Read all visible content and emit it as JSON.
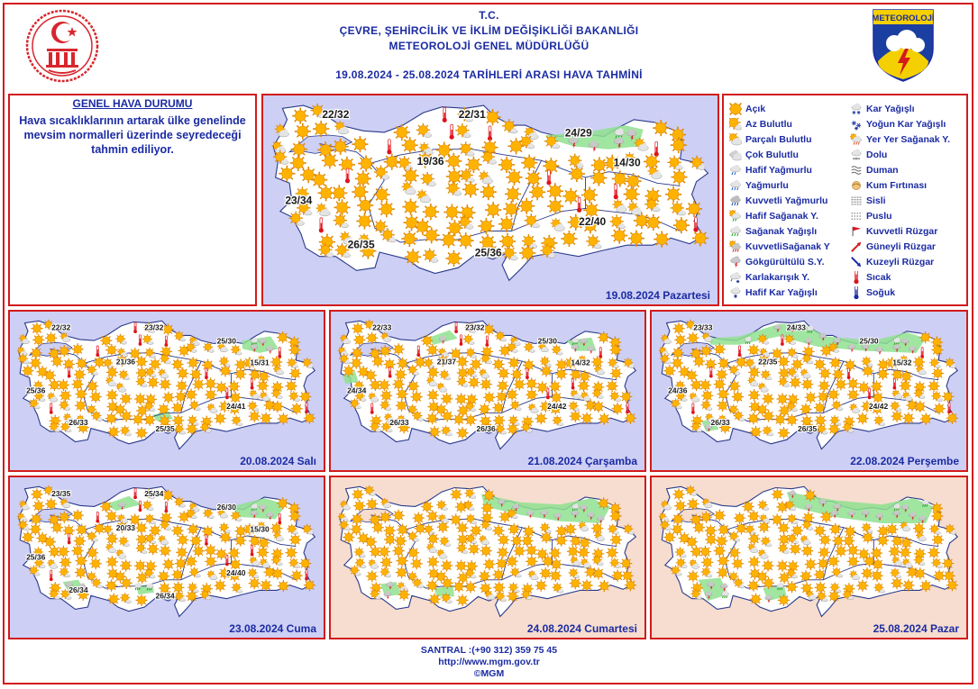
{
  "header": {
    "line1": "T.C.",
    "line2": "ÇEVRE, ŞEHİRCİLİK VE İKLİM DEĞİŞİKLİĞİ BAKANLIĞI",
    "line3": "METEOROLOJİ GENEL MÜDÜRLÜĞÜ",
    "range": "19.08.2024  -  25.08.2024   TARİHLERİ ARASI HAVA TAHMİNİ",
    "logo_text": "METEOROLOJİ"
  },
  "general": {
    "title": "GENEL HAVA DURUMU",
    "text": "Hava sıcaklıklarının artarak ülke genelinde mevsim normalleri üzerinde seyredeceği tahmin ediliyor."
  },
  "colors": {
    "border": "#d21b1b",
    "text": "#1b2ba3",
    "land": "#ffffff",
    "sea_weekday": "#cdcff4",
    "sea_weekend": "#f6ddcf",
    "rain_zone": "#8fe08f",
    "sun": "#ffb300"
  },
  "legend": {
    "col1": [
      {
        "icon": "sun-icon",
        "label": "Açık"
      },
      {
        "icon": "few-clouds-icon",
        "label": "Az Bulutlu"
      },
      {
        "icon": "partly-cloudy-icon",
        "label": "Parçalı Bulutlu"
      },
      {
        "icon": "cloudy-icon",
        "label": "Çok Bulutlu"
      },
      {
        "icon": "light-rain-icon",
        "label": "Hafif Yağmurlu"
      },
      {
        "icon": "rain-icon",
        "label": "Yağmurlu"
      },
      {
        "icon": "heavy-rain-icon",
        "label": "Kuvvetli Yağmurlu"
      },
      {
        "icon": "light-showers-icon",
        "label": "Hafif Sağanak Y."
      },
      {
        "icon": "showers-icon",
        "label": "Sağanak Yağışlı"
      },
      {
        "icon": "heavy-showers-icon",
        "label": "KuvvetliSağanak Y"
      },
      {
        "icon": "thunderstorm-icon",
        "label": "Gökgürültülü S.Y."
      },
      {
        "icon": "sleet-icon",
        "label": "Karlakarışık Y."
      },
      {
        "icon": "light-snow-icon",
        "label": "Hafif Kar Yağışlı"
      }
    ],
    "col2": [
      {
        "icon": "snow-icon",
        "label": "Kar Yağışlı"
      },
      {
        "icon": "heavy-snow-icon",
        "label": "Yoğun Kar Yağışlı"
      },
      {
        "icon": "local-showers-icon",
        "label": "Yer Yer Sağanak Y."
      },
      {
        "icon": "hail-icon",
        "label": "Dolu"
      },
      {
        "icon": "smoke-icon",
        "label": "Duman"
      },
      {
        "icon": "sandstorm-icon",
        "label": "Kum Fırtınası"
      },
      {
        "icon": "fog-icon",
        "label": "Sisli"
      },
      {
        "icon": "haze-icon",
        "label": "Puslu"
      },
      {
        "icon": "strong-wind-icon",
        "label": "Kuvvetli Rüzgar"
      },
      {
        "icon": "south-wind-icon",
        "label": "Güneyli Rüzgar"
      },
      {
        "icon": "north-wind-icon",
        "label": "Kuzeyli Rüzgar"
      },
      {
        "icon": "hot-icon",
        "label": "Sıcak"
      },
      {
        "icon": "cold-icon",
        "label": "Soğuk"
      }
    ]
  },
  "maps": [
    {
      "id": "day1",
      "date": "19.08.2024 Pazartesi",
      "weekend": false,
      "temps": [
        {
          "label": "22/32",
          "lon": 28.7,
          "lat": 41.6
        },
        {
          "label": "22/31",
          "lon": 34.6,
          "lat": 41.6
        },
        {
          "label": "24/29",
          "lon": 39.2,
          "lat": 40.95
        },
        {
          "label": "19/36",
          "lon": 32.8,
          "lat": 39.95
        },
        {
          "label": "14/30",
          "lon": 41.3,
          "lat": 39.9
        },
        {
          "label": "23/34",
          "lon": 27.1,
          "lat": 38.55
        },
        {
          "label": "22/40",
          "lon": 39.8,
          "lat": 37.8
        },
        {
          "label": "26/35",
          "lon": 29.8,
          "lat": 37.0
        },
        {
          "label": "25/36",
          "lon": 35.3,
          "lat": 36.7
        }
      ]
    },
    {
      "id": "day2",
      "date": "20.08.2024 Salı",
      "weekend": false,
      "temps": [
        {
          "label": "22/32",
          "lon": 28.7,
          "lat": 41.6
        },
        {
          "label": "23/32",
          "lon": 34.6,
          "lat": 41.6
        },
        {
          "label": "25/30",
          "lon": 39.2,
          "lat": 40.95
        },
        {
          "label": "21/36",
          "lon": 32.8,
          "lat": 39.95
        },
        {
          "label": "15/31",
          "lon": 41.3,
          "lat": 39.9
        },
        {
          "label": "25/36",
          "lon": 27.1,
          "lat": 38.55
        },
        {
          "label": "24/41",
          "lon": 39.8,
          "lat": 37.8
        },
        {
          "label": "26/33",
          "lon": 29.8,
          "lat": 37.0
        },
        {
          "label": "25/35",
          "lon": 35.3,
          "lat": 36.7
        }
      ]
    },
    {
      "id": "day3",
      "date": "21.08.2024 Çarşamba",
      "weekend": false,
      "temps": [
        {
          "label": "22/33",
          "lon": 28.7,
          "lat": 41.6
        },
        {
          "label": "23/32",
          "lon": 34.6,
          "lat": 41.6
        },
        {
          "label": "25/30",
          "lon": 39.2,
          "lat": 40.95
        },
        {
          "label": "21/37",
          "lon": 32.8,
          "lat": 39.95
        },
        {
          "label": "14/32",
          "lon": 41.3,
          "lat": 39.9
        },
        {
          "label": "24/34",
          "lon": 27.1,
          "lat": 38.55
        },
        {
          "label": "24/42",
          "lon": 39.8,
          "lat": 37.8
        },
        {
          "label": "26/33",
          "lon": 29.8,
          "lat": 37.0
        },
        {
          "label": "26/36",
          "lon": 35.3,
          "lat": 36.7
        }
      ]
    },
    {
      "id": "day4",
      "date": "22.08.2024 Perşembe",
      "weekend": false,
      "temps": [
        {
          "label": "23/33",
          "lon": 28.7,
          "lat": 41.6
        },
        {
          "label": "24/33",
          "lon": 34.6,
          "lat": 41.6
        },
        {
          "label": "25/30",
          "lon": 39.2,
          "lat": 40.95
        },
        {
          "label": "22/35",
          "lon": 32.8,
          "lat": 39.95
        },
        {
          "label": "15/32",
          "lon": 41.3,
          "lat": 39.9
        },
        {
          "label": "24/36",
          "lon": 27.1,
          "lat": 38.55
        },
        {
          "label": "24/42",
          "lon": 39.8,
          "lat": 37.8
        },
        {
          "label": "26/33",
          "lon": 29.8,
          "lat": 37.0
        },
        {
          "label": "26/35",
          "lon": 35.3,
          "lat": 36.7
        }
      ]
    },
    {
      "id": "day5",
      "date": "23.08.2024 Cuma",
      "weekend": false,
      "temps": [
        {
          "label": "23/35",
          "lon": 28.7,
          "lat": 41.6
        },
        {
          "label": "25/34",
          "lon": 34.6,
          "lat": 41.6
        },
        {
          "label": "26/30",
          "lon": 39.2,
          "lat": 40.95
        },
        {
          "label": "20/33",
          "lon": 32.8,
          "lat": 39.95
        },
        {
          "label": "15/30",
          "lon": 41.3,
          "lat": 39.9
        },
        {
          "label": "25/36",
          "lon": 27.1,
          "lat": 38.55
        },
        {
          "label": "24/40",
          "lon": 39.8,
          "lat": 37.8
        },
        {
          "label": "26/34",
          "lon": 29.8,
          "lat": 37.0
        },
        {
          "label": "26/34",
          "lon": 35.3,
          "lat": 36.7
        }
      ]
    },
    {
      "id": "day6",
      "date": "24.08.2024 Cumartesi",
      "weekend": true,
      "temps": []
    },
    {
      "id": "day7",
      "date": "25.08.2024 Pazar",
      "weekend": true,
      "temps": []
    }
  ],
  "footer": {
    "phone": "SANTRAL :(+90 312) 359 75 45",
    "url": "http://www.mgm.gov.tr",
    "copyright": "©MGM"
  }
}
